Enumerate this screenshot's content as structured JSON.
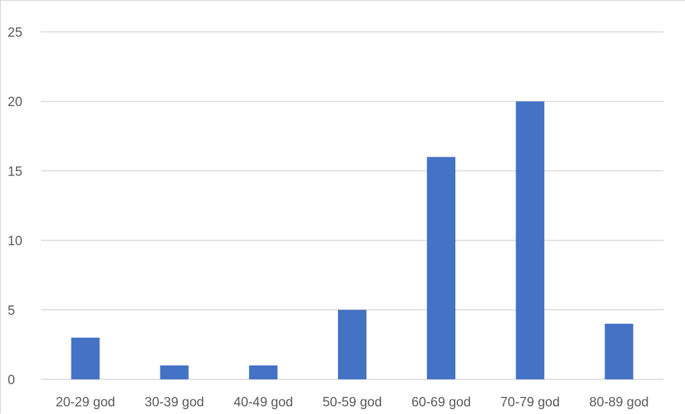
{
  "chart_data": {
    "type": "bar",
    "categories": [
      "20-29 god",
      "30-39 god",
      "40-49 god",
      "50-59 god",
      "60-69 god",
      "70-79 god",
      "80-89 god"
    ],
    "values": [
      3,
      1,
      1,
      5,
      16,
      20,
      4
    ],
    "yticks": [
      "0",
      "5",
      "10",
      "15",
      "20",
      "25"
    ],
    "ylim": [
      0,
      25
    ],
    "grid": true,
    "legend": "none",
    "bar_color": "#4472c4",
    "grid_color": "#d9d9d9"
  }
}
